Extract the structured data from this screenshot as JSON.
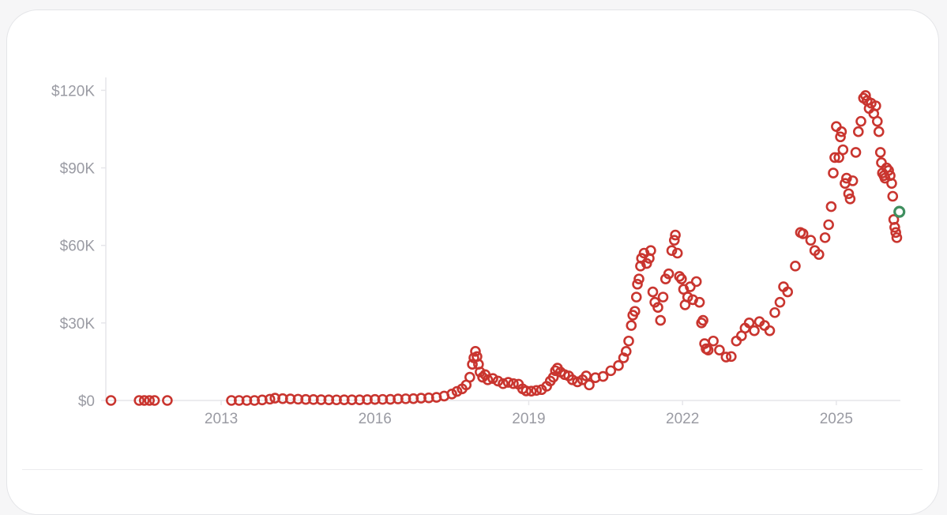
{
  "chart_data": {
    "type": "scatter",
    "title": "",
    "xlabel": "",
    "ylabel": "",
    "x_ticks": [
      "2013",
      "2016",
      "2019",
      "2022",
      "2025"
    ],
    "y_ticks": [
      "$0",
      "$30K",
      "$60K",
      "$90K",
      "$120K"
    ],
    "xlim": [
      2010.75,
      2026.25
    ],
    "ylim": [
      0,
      125000
    ],
    "grid": false,
    "marker": "hollow-circle",
    "colors": {
      "points": "#c9352f",
      "latest": "#3f8f5f",
      "axis": "#e6e6ea"
    },
    "series": [
      {
        "points": [
          [
            2010.85,
            0
          ],
          [
            2011.4,
            0
          ],
          [
            2011.5,
            0
          ],
          [
            2011.6,
            0
          ],
          [
            2011.7,
            0
          ],
          [
            2011.95,
            0
          ],
          [
            2013.2,
            0
          ],
          [
            2013.35,
            0
          ],
          [
            2013.5,
            0
          ],
          [
            2013.65,
            0
          ],
          [
            2013.8,
            200
          ],
          [
            2013.95,
            500
          ],
          [
            2014.05,
            900
          ],
          [
            2014.2,
            700
          ],
          [
            2014.35,
            600
          ],
          [
            2014.5,
            500
          ],
          [
            2014.65,
            400
          ],
          [
            2014.8,
            350
          ],
          [
            2014.95,
            300
          ],
          [
            2015.1,
            250
          ],
          [
            2015.25,
            230
          ],
          [
            2015.4,
            240
          ],
          [
            2015.55,
            260
          ],
          [
            2015.7,
            250
          ],
          [
            2015.85,
            320
          ],
          [
            2016.0,
            400
          ],
          [
            2016.15,
            420
          ],
          [
            2016.3,
            450
          ],
          [
            2016.45,
            600
          ],
          [
            2016.6,
            650
          ],
          [
            2016.75,
            700
          ],
          [
            2016.9,
            900
          ],
          [
            2017.05,
            1000
          ],
          [
            2017.2,
            1200
          ],
          [
            2017.35,
            1700
          ],
          [
            2017.5,
            2500
          ],
          [
            2017.6,
            3500
          ],
          [
            2017.7,
            4500
          ],
          [
            2017.78,
            6000
          ],
          [
            2017.85,
            9000
          ],
          [
            2017.9,
            14000
          ],
          [
            2017.93,
            16500
          ],
          [
            2017.96,
            19000
          ],
          [
            2017.99,
            17000
          ],
          [
            2018.02,
            14000
          ],
          [
            2018.05,
            11000
          ],
          [
            2018.1,
            9000
          ],
          [
            2018.15,
            10000
          ],
          [
            2018.2,
            8000
          ],
          [
            2018.3,
            8500
          ],
          [
            2018.4,
            7500
          ],
          [
            2018.5,
            6500
          ],
          [
            2018.6,
            7000
          ],
          [
            2018.7,
            6500
          ],
          [
            2018.8,
            6300
          ],
          [
            2018.88,
            4500
          ],
          [
            2018.95,
            3700
          ],
          [
            2019.05,
            3600
          ],
          [
            2019.15,
            3900
          ],
          [
            2019.25,
            4200
          ],
          [
            2019.35,
            5500
          ],
          [
            2019.42,
            7500
          ],
          [
            2019.48,
            9000
          ],
          [
            2019.52,
            11500
          ],
          [
            2019.56,
            12500
          ],
          [
            2019.62,
            11000
          ],
          [
            2019.7,
            10000
          ],
          [
            2019.78,
            9500
          ],
          [
            2019.85,
            8000
          ],
          [
            2019.95,
            7200
          ],
          [
            2020.05,
            8000
          ],
          [
            2020.12,
            9500
          ],
          [
            2020.18,
            6000
          ],
          [
            2020.3,
            8800
          ],
          [
            2020.45,
            9300
          ],
          [
            2020.6,
            11500
          ],
          [
            2020.75,
            13500
          ],
          [
            2020.85,
            16500
          ],
          [
            2020.9,
            19000
          ],
          [
            2020.95,
            23000
          ],
          [
            2021.0,
            29000
          ],
          [
            2021.03,
            33000
          ],
          [
            2021.07,
            34500
          ],
          [
            2021.1,
            40000
          ],
          [
            2021.12,
            45000
          ],
          [
            2021.15,
            47000
          ],
          [
            2021.18,
            52000
          ],
          [
            2021.2,
            55000
          ],
          [
            2021.25,
            57000
          ],
          [
            2021.3,
            53000
          ],
          [
            2021.35,
            55000
          ],
          [
            2021.38,
            58000
          ],
          [
            2021.42,
            42000
          ],
          [
            2021.46,
            38000
          ],
          [
            2021.52,
            36000
          ],
          [
            2021.57,
            31000
          ],
          [
            2021.62,
            40000
          ],
          [
            2021.67,
            47000
          ],
          [
            2021.73,
            49000
          ],
          [
            2021.79,
            58000
          ],
          [
            2021.84,
            62000
          ],
          [
            2021.86,
            64000
          ],
          [
            2021.9,
            57000
          ],
          [
            2021.94,
            48000
          ],
          [
            2021.98,
            47000
          ],
          [
            2022.02,
            43000
          ],
          [
            2022.05,
            37000
          ],
          [
            2022.1,
            40000
          ],
          [
            2022.15,
            44000
          ],
          [
            2022.2,
            39000
          ],
          [
            2022.27,
            46000
          ],
          [
            2022.33,
            38000
          ],
          [
            2022.37,
            30000
          ],
          [
            2022.4,
            31000
          ],
          [
            2022.43,
            22000
          ],
          [
            2022.46,
            20000
          ],
          [
            2022.5,
            19500
          ],
          [
            2022.6,
            23000
          ],
          [
            2022.72,
            19500
          ],
          [
            2022.85,
            16800
          ],
          [
            2022.95,
            17000
          ],
          [
            2023.05,
            23000
          ],
          [
            2023.15,
            25000
          ],
          [
            2023.22,
            28000
          ],
          [
            2023.3,
            30000
          ],
          [
            2023.4,
            27000
          ],
          [
            2023.5,
            30500
          ],
          [
            2023.6,
            29000
          ],
          [
            2023.7,
            27000
          ],
          [
            2023.8,
            34000
          ],
          [
            2023.9,
            38000
          ],
          [
            2023.97,
            44000
          ],
          [
            2024.05,
            42000
          ],
          [
            2024.2,
            52000
          ],
          [
            2024.3,
            65000
          ],
          [
            2024.35,
            64500
          ],
          [
            2024.5,
            62000
          ],
          [
            2024.58,
            58000
          ],
          [
            2024.66,
            56500
          ],
          [
            2024.78,
            63000
          ],
          [
            2024.85,
            68000
          ],
          [
            2024.9,
            75000
          ],
          [
            2024.94,
            88000
          ],
          [
            2024.97,
            94000
          ],
          [
            2025.0,
            106000
          ],
          [
            2025.05,
            94000
          ],
          [
            2025.08,
            102000
          ],
          [
            2025.1,
            104000
          ],
          [
            2025.13,
            97000
          ],
          [
            2025.17,
            84000
          ],
          [
            2025.2,
            86000
          ],
          [
            2025.24,
            80000
          ],
          [
            2025.27,
            78000
          ],
          [
            2025.32,
            85000
          ],
          [
            2025.38,
            96000
          ],
          [
            2025.43,
            104000
          ],
          [
            2025.48,
            108000
          ],
          [
            2025.53,
            117000
          ],
          [
            2025.57,
            118000
          ],
          [
            2025.6,
            116000
          ],
          [
            2025.64,
            113000
          ],
          [
            2025.68,
            115000
          ],
          [
            2025.73,
            111000
          ],
          [
            2025.77,
            114000
          ],
          [
            2025.8,
            108000
          ],
          [
            2025.83,
            104000
          ],
          [
            2025.86,
            96000
          ],
          [
            2025.88,
            92000
          ],
          [
            2025.9,
            88000
          ],
          [
            2025.93,
            87000
          ],
          [
            2025.95,
            86000
          ],
          [
            2025.98,
            90000
          ],
          [
            2026.02,
            89000
          ],
          [
            2026.05,
            87000
          ],
          [
            2026.08,
            84000
          ],
          [
            2026.1,
            79000
          ],
          [
            2026.12,
            70000
          ],
          [
            2026.14,
            67000
          ],
          [
            2026.16,
            65000
          ],
          [
            2026.18,
            63000
          ]
        ]
      }
    ],
    "latest_point": [
      2026.23,
      73000
    ]
  }
}
